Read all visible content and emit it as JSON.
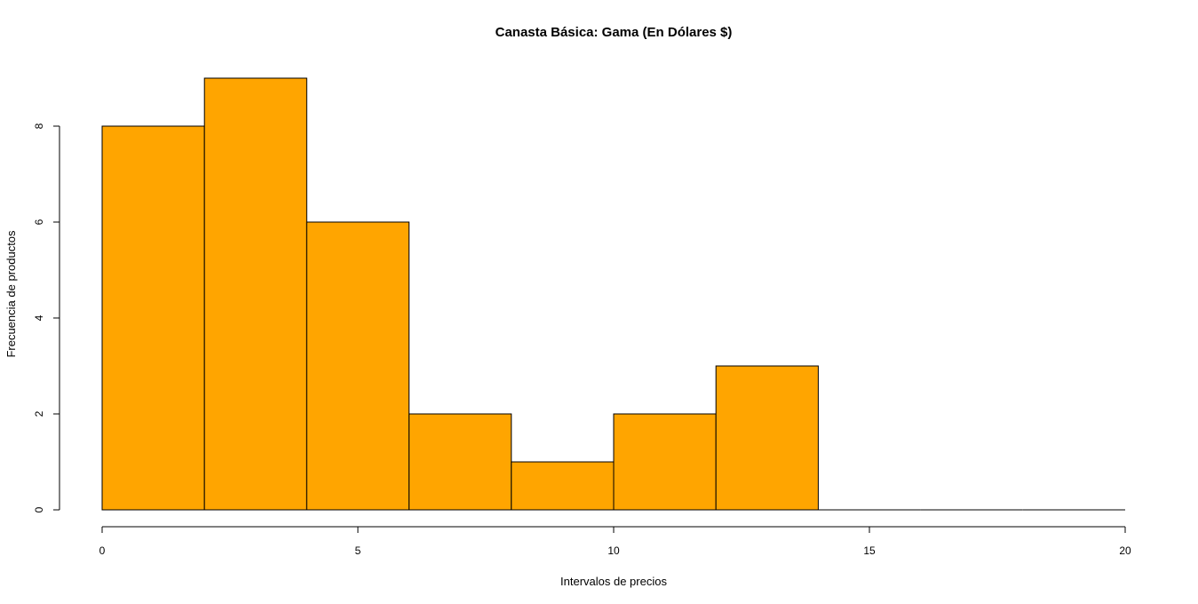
{
  "chart_data": {
    "type": "histogram",
    "title": "Canasta Básica: Gama (En Dólares $)",
    "xlabel": "Intervalos de precios",
    "ylabel": "Frecuencia de productos",
    "bins": [
      {
        "start": 0,
        "end": 2,
        "count": 8
      },
      {
        "start": 2,
        "end": 4,
        "count": 9
      },
      {
        "start": 4,
        "end": 6,
        "count": 6
      },
      {
        "start": 6,
        "end": 8,
        "count": 2
      },
      {
        "start": 8,
        "end": 10,
        "count": 1
      },
      {
        "start": 10,
        "end": 12,
        "count": 2
      },
      {
        "start": 12,
        "end": 14,
        "count": 3
      },
      {
        "start": 14,
        "end": 16,
        "count": 0
      },
      {
        "start": 16,
        "end": 18,
        "count": 0
      },
      {
        "start": 18,
        "end": 20,
        "count": 0
      }
    ],
    "xlim": [
      0,
      20
    ],
    "ylim": [
      0,
      9
    ],
    "x_ticks": [
      "0",
      "5",
      "10",
      "15",
      "20"
    ],
    "y_ticks": [
      "0",
      "2",
      "4",
      "6",
      "8"
    ],
    "bar_color": "#FFA500",
    "border_color": "#000000",
    "grid": false,
    "legend": "none"
  }
}
